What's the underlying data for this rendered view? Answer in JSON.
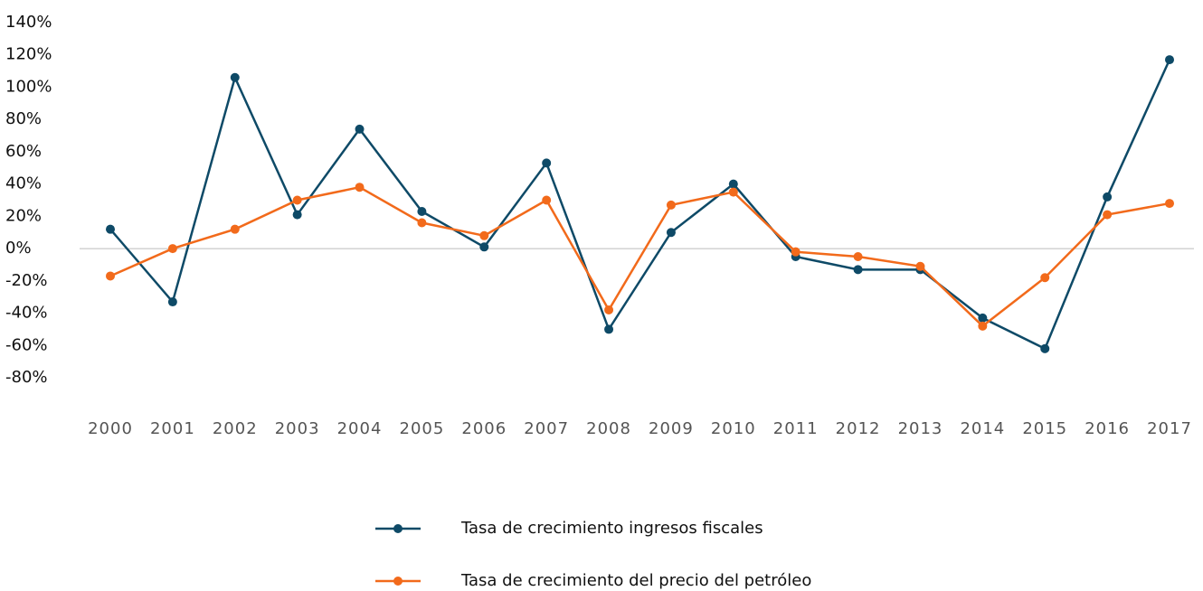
{
  "chart_data": {
    "type": "line",
    "categories": [
      "2000",
      "2001",
      "2002",
      "2003",
      "2004",
      "2005",
      "2006",
      "2007",
      "2008",
      "2009",
      "2010",
      "2011",
      "2012",
      "2013",
      "2014",
      "2015",
      "2016",
      "2017"
    ],
    "series": [
      {
        "name": "Tasa de crecimiento ingresos fiscales",
        "color": "#0e4a67",
        "values": [
          12,
          -33,
          106,
          21,
          74,
          23,
          1,
          53,
          -50,
          10,
          40,
          -5,
          -13,
          -13,
          -43,
          -62,
          32,
          117
        ]
      },
      {
        "name": "Tasa de crecimiento del precio del petróleo",
        "color": "#f26a1b",
        "values": [
          -17,
          0,
          12,
          30,
          38,
          16,
          8,
          30,
          -38,
          27,
          35,
          -2,
          -5,
          -11,
          -48,
          -18,
          21,
          28
        ]
      }
    ],
    "ylim": [
      -80,
      140
    ],
    "yticks": [
      {
        "value": -80,
        "label": "-80%"
      },
      {
        "value": -60,
        "label": "-60%"
      },
      {
        "value": -40,
        "label": "-40%"
      },
      {
        "value": -20,
        "label": "-20%"
      },
      {
        "value": 0,
        "label": "0%"
      },
      {
        "value": 20,
        "label": "20%"
      },
      {
        "value": 40,
        "label": "40%"
      },
      {
        "value": 60,
        "label": "60%"
      },
      {
        "value": 80,
        "label": "80%"
      },
      {
        "value": 100,
        "label": "100%"
      },
      {
        "value": 120,
        "label": "120%"
      },
      {
        "value": 140,
        "label": "140%"
      }
    ],
    "grid": false
  }
}
